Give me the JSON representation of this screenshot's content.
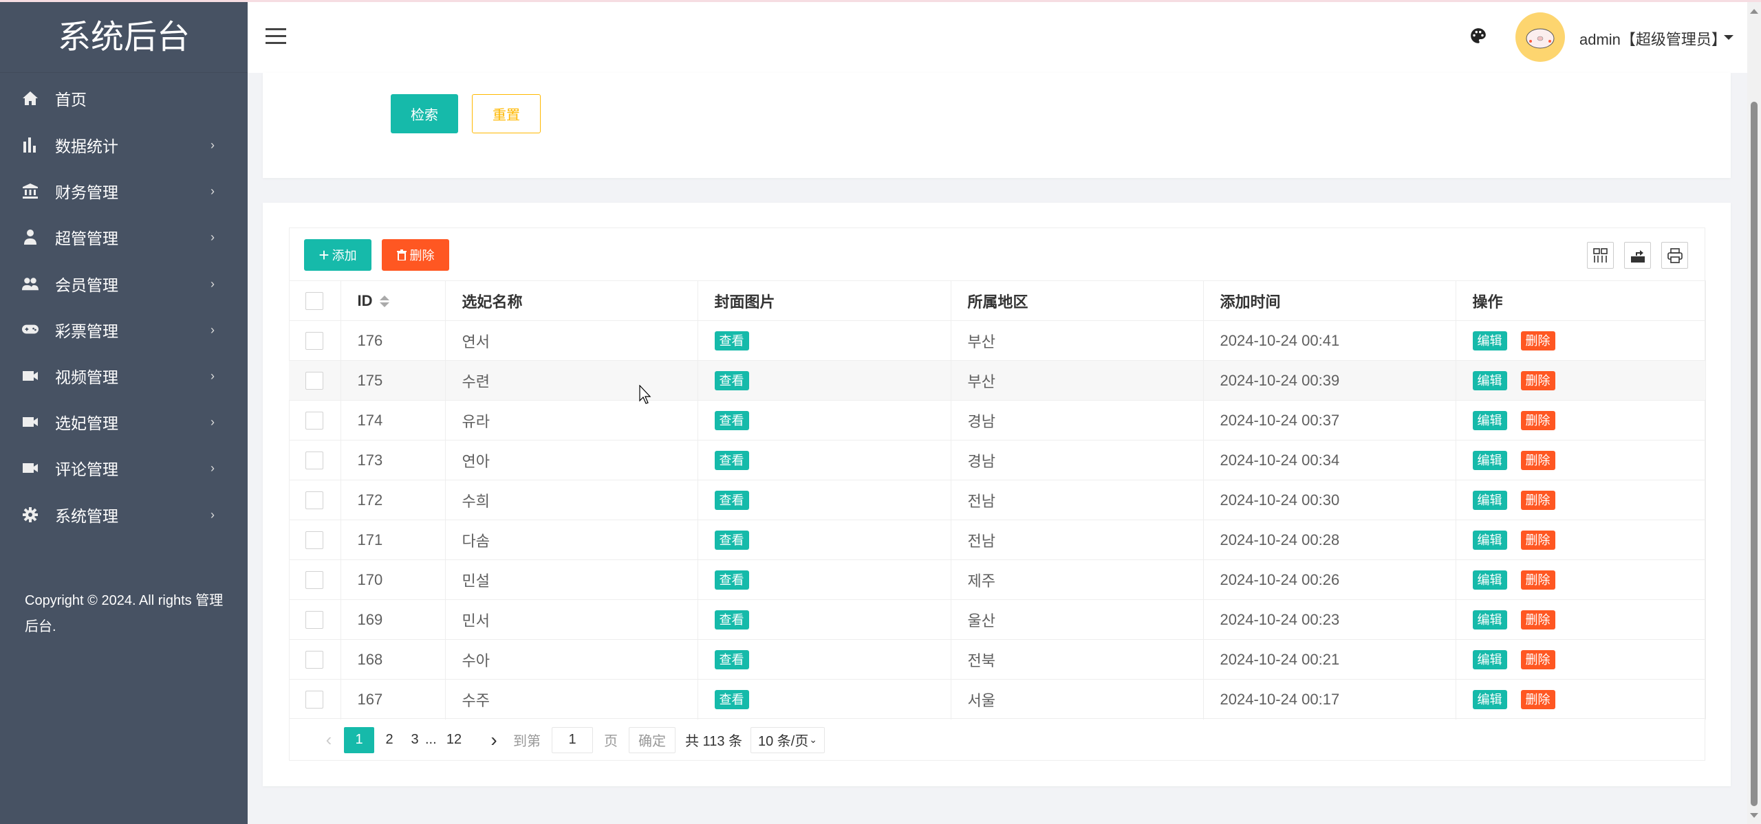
{
  "sidebar": {
    "title": "系统后台",
    "items": [
      {
        "label": "首页",
        "icon": "home-icon"
      },
      {
        "label": "数据统计",
        "icon": "bar-chart-icon"
      },
      {
        "label": "财务管理",
        "icon": "bank-icon"
      },
      {
        "label": "超管管理",
        "icon": "user-icon"
      },
      {
        "label": "会员管理",
        "icon": "users-icon"
      },
      {
        "label": "彩票管理",
        "icon": "gamepad-icon"
      },
      {
        "label": "视频管理",
        "icon": "video-icon"
      },
      {
        "label": "选妃管理",
        "icon": "video-icon"
      },
      {
        "label": "评论管理",
        "icon": "video-icon"
      },
      {
        "label": "系统管理",
        "icon": "gear-icon"
      }
    ],
    "copyright": "Copyright © 2024. All rights 管理后台."
  },
  "header": {
    "user": "admin【超级管理员】"
  },
  "search": {
    "search_label": "检索",
    "reset_label": "重置"
  },
  "toolbar": {
    "add_label": "添加",
    "delete_label": "删除"
  },
  "table": {
    "columns": [
      "ID",
      "选妃名称",
      "封面图片",
      "所属地区",
      "添加时间",
      "操作"
    ],
    "view_label": "查看",
    "edit_label": "编辑",
    "delete_label": "删除",
    "rows": [
      {
        "id": "176",
        "name": "연서",
        "region": "부산",
        "time": "2024-10-24 00:41"
      },
      {
        "id": "175",
        "name": "수련",
        "region": "부산",
        "time": "2024-10-24 00:39"
      },
      {
        "id": "174",
        "name": "유라",
        "region": "경남",
        "time": "2024-10-24 00:37"
      },
      {
        "id": "173",
        "name": "연아",
        "region": "경남",
        "time": "2024-10-24 00:34"
      },
      {
        "id": "172",
        "name": "수희",
        "region": "전남",
        "time": "2024-10-24 00:30"
      },
      {
        "id": "171",
        "name": "다솜",
        "region": "전남",
        "time": "2024-10-24 00:28"
      },
      {
        "id": "170",
        "name": "민설",
        "region": "제주",
        "time": "2024-10-24 00:26"
      },
      {
        "id": "169",
        "name": "민서",
        "region": "울산",
        "time": "2024-10-24 00:23"
      },
      {
        "id": "168",
        "name": "수아",
        "region": "전북",
        "time": "2024-10-24 00:21"
      },
      {
        "id": "167",
        "name": "수주",
        "region": "서울",
        "time": "2024-10-24 00:17"
      }
    ]
  },
  "pagination": {
    "pages": [
      "1",
      "2",
      "3"
    ],
    "ellipsis": "...",
    "last": "12",
    "goto_label": "到第",
    "page_value": "1",
    "page_unit": "页",
    "confirm_label": "确定",
    "total": "共 113 条",
    "page_size": "10 条/页"
  },
  "colors": {
    "sidebar": "#475263",
    "primary": "#16baaa",
    "danger": "#ff5722",
    "warning": "#ffb800"
  }
}
